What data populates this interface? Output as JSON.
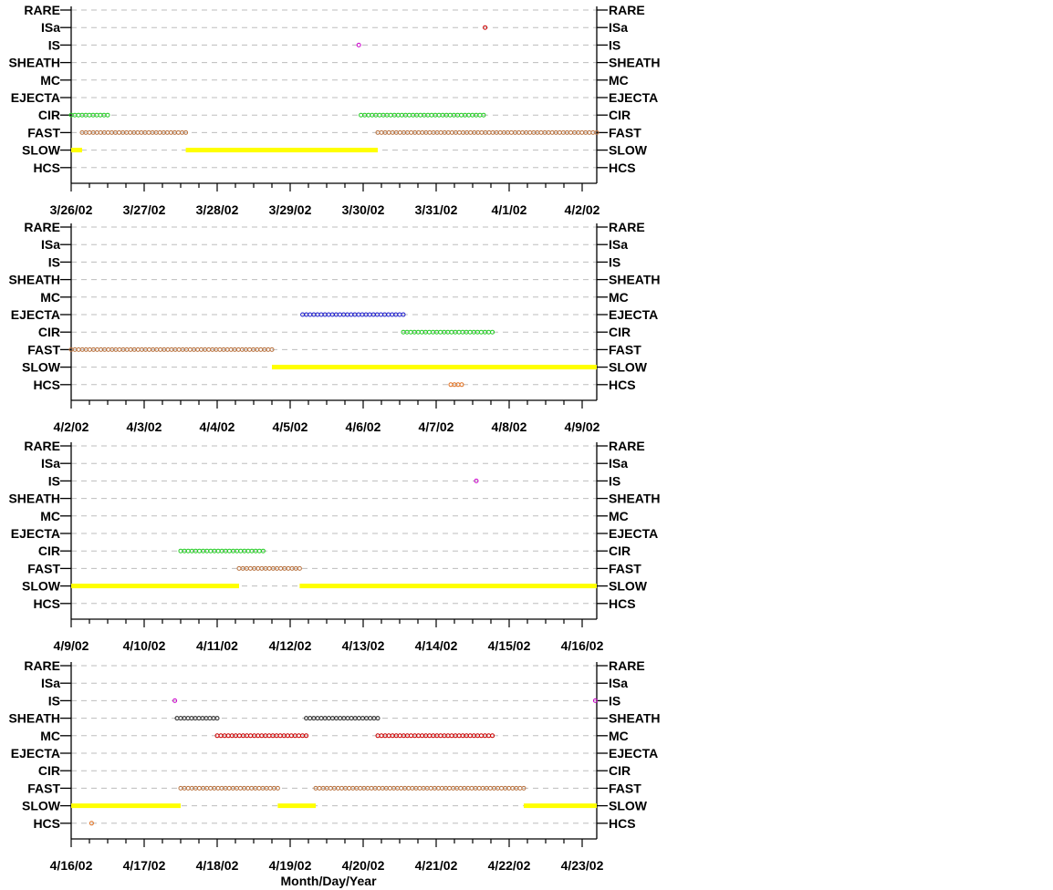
{
  "chart_data": {
    "type": "scatter",
    "xlabel": "Month/Day/Year",
    "categories": [
      "RARE",
      "ISa",
      "IS",
      "SHEATH",
      "MC",
      "EJECTA",
      "CIR",
      "FAST",
      "SLOW",
      "HCS"
    ],
    "colors": {
      "RARE": "#000000",
      "ISa": "#cc0000",
      "IS": "#cc00cc",
      "SHEATH": "#222222",
      "MC": "#cc0000",
      "EJECTA": "#1a1acc",
      "CIR": "#22cc22",
      "FAST": "#b8703c",
      "SLOW": "#ffff00",
      "HCS": "#e07020"
    },
    "panels": [
      {
        "xlim": [
          0,
          7.2
        ],
        "tick_labels": [
          "3/26/02",
          "3/27/02",
          "3/28/02",
          "3/29/02",
          "3/30/02",
          "3/31/02",
          "4/1/02",
          "4/2/02"
        ],
        "segments": [
          {
            "cat": "SLOW",
            "x0": 0.0,
            "x1": 0.15,
            "style": "bar"
          },
          {
            "cat": "SLOW",
            "x0": 1.57,
            "x1": 4.2,
            "style": "bar"
          },
          {
            "cat": "FAST",
            "x0": 0.15,
            "x1": 1.57,
            "style": "dots"
          },
          {
            "cat": "FAST",
            "x0": 4.2,
            "x1": 7.2,
            "style": "dots"
          },
          {
            "cat": "CIR",
            "x0": 0.0,
            "x1": 0.5,
            "style": "dots"
          },
          {
            "cat": "CIR",
            "x0": 3.97,
            "x1": 5.65,
            "style": "dots"
          },
          {
            "cat": "IS",
            "x0": 3.94,
            "x1": 3.94,
            "style": "dots"
          },
          {
            "cat": "ISa",
            "x0": 5.67,
            "x1": 5.67,
            "style": "dots"
          }
        ]
      },
      {
        "xlim": [
          0,
          7.2
        ],
        "tick_labels": [
          "4/2/02",
          "4/3/02",
          "4/4/02",
          "4/5/02",
          "4/6/02",
          "4/7/02",
          "4/8/02",
          "4/9/02"
        ],
        "segments": [
          {
            "cat": "FAST",
            "x0": 0.0,
            "x1": 2.75,
            "style": "dots"
          },
          {
            "cat": "SLOW",
            "x0": 2.75,
            "x1": 7.2,
            "style": "bar"
          },
          {
            "cat": "EJECTA",
            "x0": 3.17,
            "x1": 4.55,
            "style": "dots"
          },
          {
            "cat": "CIR",
            "x0": 4.55,
            "x1": 5.77,
            "style": "dots"
          },
          {
            "cat": "HCS",
            "x0": 5.2,
            "x1": 5.35,
            "style": "dots"
          }
        ]
      },
      {
        "xlim": [
          0,
          7.2
        ],
        "tick_labels": [
          "4/9/02",
          "4/10/02",
          "4/11/02",
          "4/12/02",
          "4/13/02",
          "4/14/02",
          "4/15/02",
          "4/16/02"
        ],
        "segments": [
          {
            "cat": "SLOW",
            "x0": 0.0,
            "x1": 2.3,
            "style": "bar"
          },
          {
            "cat": "SLOW",
            "x0": 3.13,
            "x1": 7.2,
            "style": "bar"
          },
          {
            "cat": "CIR",
            "x0": 1.5,
            "x1": 2.63,
            "style": "dots"
          },
          {
            "cat": "FAST",
            "x0": 2.3,
            "x1": 3.13,
            "style": "dots"
          },
          {
            "cat": "IS",
            "x0": 5.55,
            "x1": 5.55,
            "style": "dots"
          }
        ]
      },
      {
        "xlim": [
          0,
          7.2
        ],
        "tick_labels": [
          "4/16/02",
          "4/17/02",
          "4/18/02",
          "4/19/02",
          "4/20/02",
          "4/21/02",
          "4/22/02",
          "4/23/02"
        ],
        "segments": [
          {
            "cat": "SLOW",
            "x0": 0.0,
            "x1": 1.5,
            "style": "bar"
          },
          {
            "cat": "SLOW",
            "x0": 2.83,
            "x1": 3.35,
            "style": "bar"
          },
          {
            "cat": "SLOW",
            "x0": 6.2,
            "x1": 7.2,
            "style": "bar"
          },
          {
            "cat": "FAST",
            "x0": 1.5,
            "x1": 2.83,
            "style": "dots"
          },
          {
            "cat": "FAST",
            "x0": 3.35,
            "x1": 6.2,
            "style": "dots"
          },
          {
            "cat": "HCS",
            "x0": 0.28,
            "x1": 0.28,
            "style": "dots"
          },
          {
            "cat": "IS",
            "x0": 1.42,
            "x1": 1.42,
            "style": "dots"
          },
          {
            "cat": "IS",
            "x0": 7.18,
            "x1": 7.18,
            "style": "dots"
          },
          {
            "cat": "SHEATH",
            "x0": 1.45,
            "x1": 2.0,
            "style": "dots"
          },
          {
            "cat": "SHEATH",
            "x0": 3.22,
            "x1": 4.2,
            "style": "dots"
          },
          {
            "cat": "MC",
            "x0": 2.0,
            "x1": 3.22,
            "style": "dots"
          },
          {
            "cat": "MC",
            "x0": 4.2,
            "x1": 5.77,
            "style": "dots"
          }
        ]
      }
    ]
  }
}
